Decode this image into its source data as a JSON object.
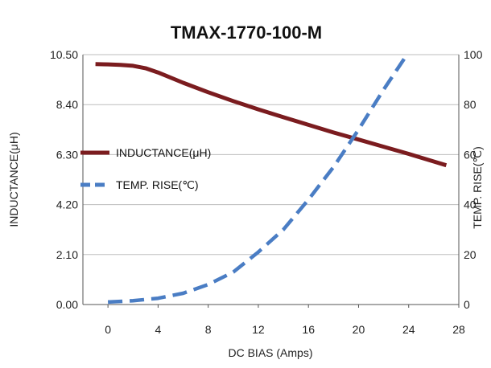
{
  "chart_data": {
    "type": "line",
    "title": "TMAX-1770-100-M",
    "xlabel": "DC BIAS  (Amps)",
    "ylabel": "INDUCTANCE(μH)",
    "y2label": "TEMP. RISE(℃)",
    "xlim": [
      -2,
      28
    ],
    "ylim": [
      0,
      10.5
    ],
    "y2lim": [
      0,
      100
    ],
    "xticks": [
      "0",
      "4",
      "8",
      "12",
      "16",
      "20",
      "24",
      "28"
    ],
    "yticks": [
      "0.00",
      "2.10",
      "4.20",
      "6.30",
      "8.40",
      "10.50"
    ],
    "y2ticks": [
      "0",
      "20",
      "40",
      "60",
      "80",
      "100"
    ],
    "grid": true,
    "legend_position": "left-middle",
    "series": [
      {
        "name": "INDUCTANCE(μH)",
        "axis": "left",
        "style": "solid",
        "color": "#7b1c1f",
        "x": [
          -1,
          0,
          1,
          2,
          3,
          4,
          6,
          8,
          10,
          12,
          14,
          16,
          18,
          20,
          22,
          24,
          26,
          27
        ],
        "y": [
          10.1,
          10.09,
          10.07,
          10.03,
          9.93,
          9.75,
          9.32,
          8.92,
          8.55,
          8.2,
          7.87,
          7.55,
          7.23,
          6.93,
          6.63,
          6.33,
          6.01,
          5.85
        ]
      },
      {
        "name": "TEMP. RISE(℃)",
        "axis": "right",
        "style": "dashed",
        "color": "#4a7dc4",
        "x": [
          0,
          2,
          4,
          6,
          8,
          10,
          12,
          14,
          16,
          18,
          20,
          22,
          24
        ],
        "y": [
          1,
          1.5,
          2.5,
          4.5,
          8,
          13,
          21,
          30,
          42,
          55,
          70,
          86,
          101
        ]
      }
    ]
  }
}
